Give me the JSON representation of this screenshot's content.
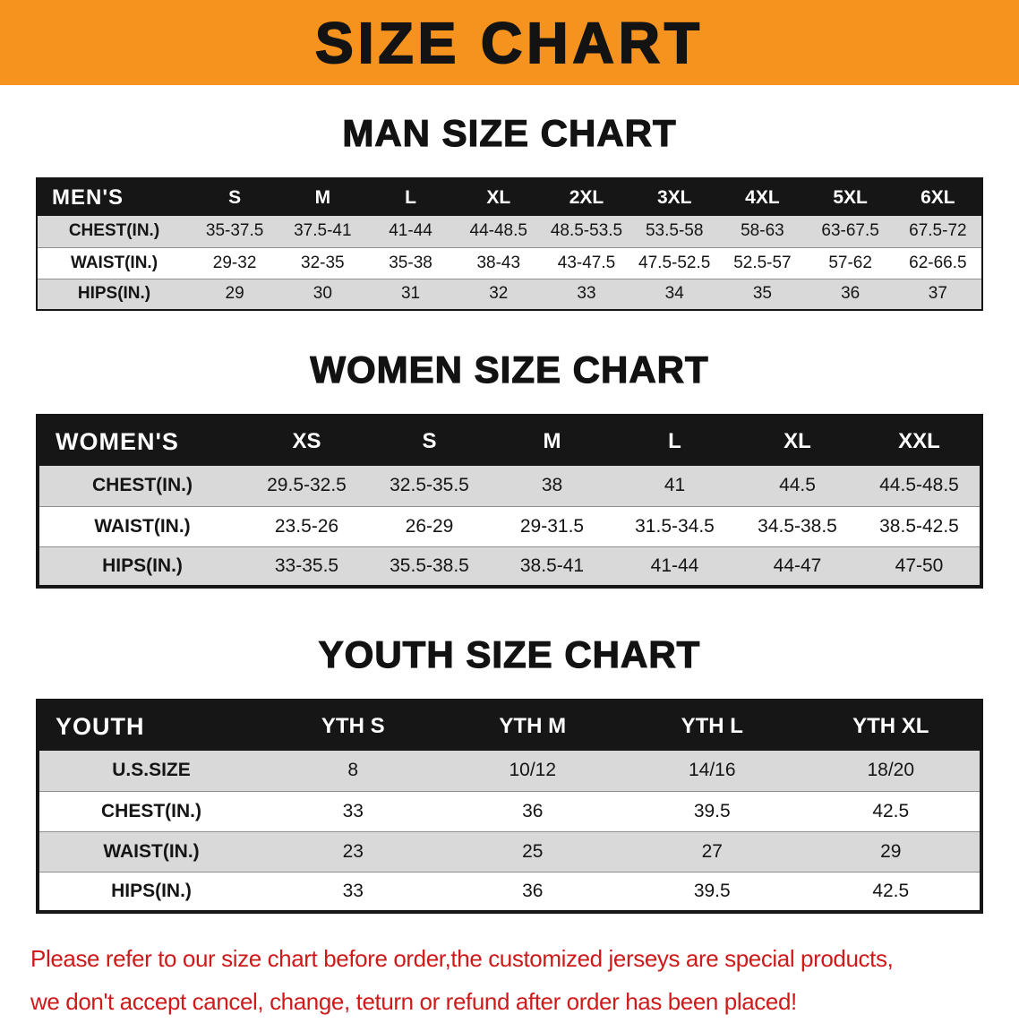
{
  "banner": {
    "title": "SIZE CHART",
    "bg_color": "#F6921E"
  },
  "chart_data": [
    {
      "type": "table",
      "title": "MAN SIZE CHART",
      "header_label": "MEN'S",
      "columns": [
        "S",
        "M",
        "L",
        "XL",
        "2XL",
        "3XL",
        "4XL",
        "5XL",
        "6XL"
      ],
      "rows": [
        {
          "label": "CHEST(IN.)",
          "values": [
            "35-37.5",
            "37.5-41",
            "41-44",
            "44-48.5",
            "48.5-53.5",
            "53.5-58",
            "58-63",
            "63-67.5",
            "67.5-72"
          ]
        },
        {
          "label": "WAIST(IN.)",
          "values": [
            "29-32",
            "32-35",
            "35-38",
            "38-43",
            "43-47.5",
            "47.5-52.5",
            "52.5-57",
            "57-62",
            "62-66.5"
          ]
        },
        {
          "label": "HIPS(IN.)",
          "values": [
            "29",
            "30",
            "31",
            "32",
            "33",
            "34",
            "35",
            "36",
            "37"
          ]
        }
      ]
    },
    {
      "type": "table",
      "title": "WOMEN SIZE CHART",
      "header_label": "WOMEN'S",
      "columns": [
        "XS",
        "S",
        "M",
        "L",
        "XL",
        "XXL"
      ],
      "rows": [
        {
          "label": "CHEST(IN.)",
          "values": [
            "29.5-32.5",
            "32.5-35.5",
            "38",
            "41",
            "44.5",
            "44.5-48.5"
          ]
        },
        {
          "label": "WAIST(IN.)",
          "values": [
            "23.5-26",
            "26-29",
            "29-31.5",
            "31.5-34.5",
            "34.5-38.5",
            "38.5-42.5"
          ]
        },
        {
          "label": "HIPS(IN.)",
          "values": [
            "33-35.5",
            "35.5-38.5",
            "38.5-41",
            "41-44",
            "44-47",
            "47-50"
          ]
        }
      ]
    },
    {
      "type": "table",
      "title": "YOUTH SIZE CHART",
      "header_label": "YOUTH",
      "columns": [
        "YTH S",
        "YTH M",
        "YTH L",
        "YTH XL"
      ],
      "rows": [
        {
          "label": "U.S.SIZE",
          "values": [
            "8",
            "10/12",
            "14/16",
            "18/20"
          ]
        },
        {
          "label": "CHEST(IN.)",
          "values": [
            "33",
            "36",
            "39.5",
            "42.5"
          ]
        },
        {
          "label": "WAIST(IN.)",
          "values": [
            "23",
            "25",
            "27",
            "29"
          ]
        },
        {
          "label": "HIPS(IN.)",
          "values": [
            "33",
            "36",
            "39.5",
            "42.5"
          ]
        }
      ]
    }
  ],
  "footer_note": {
    "line1": "Please refer to our size chart before order,the customized jerseys are special products,",
    "line2": "we don't accept cancel, change, teturn or refund after order has been placed!",
    "color": "#CE1A1A"
  },
  "colors": {
    "banner_bg": "#F6921E",
    "table_header_bg": "#161616",
    "row_stripe": "#D9D9D9",
    "note_text": "#CE1A1A"
  }
}
